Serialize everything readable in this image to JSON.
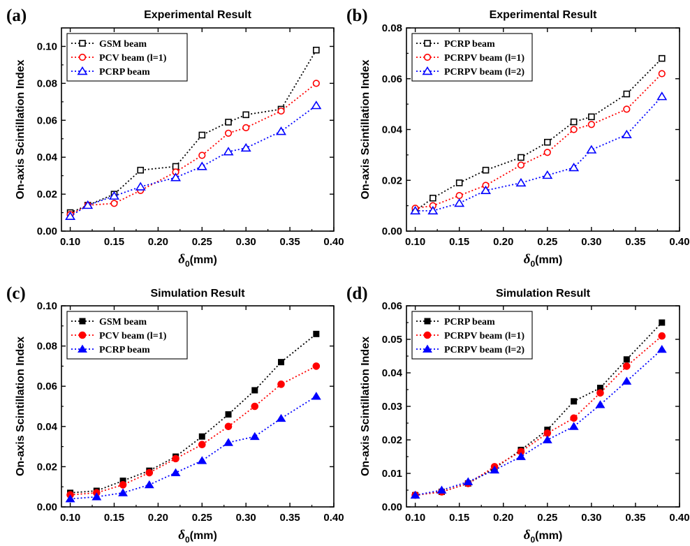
{
  "chart_data": [
    {
      "panel": "(a)",
      "type": "scatter",
      "title": "Experimental Result",
      "ylabel": "On-axis Scintillation Index",
      "xlabel": {
        "symbol": "δ",
        "subscript": "0",
        "unit": "(mm)"
      },
      "xlim": [
        0.09,
        0.4
      ],
      "ylim": [
        0,
        0.11
      ],
      "xticks": [
        0.1,
        0.15,
        0.2,
        0.25,
        0.3,
        0.35,
        0.4
      ],
      "yticks": [
        0.0,
        0.02,
        0.04,
        0.06,
        0.08,
        0.1
      ],
      "xtick_labels": [
        "0.10",
        "0.15",
        "0.20",
        "0.25",
        "0.30",
        "0.35",
        "0.40"
      ],
      "ytick_labels": [
        "0.00",
        "0.02",
        "0.04",
        "0.06",
        "0.08",
        "0.10"
      ],
      "legend_position": "top-left",
      "filled": false,
      "series": [
        {
          "name": "GSM   beam",
          "color": "#000000",
          "marker": "square",
          "x": [
            0.1,
            0.12,
            0.15,
            0.18,
            0.22,
            0.25,
            0.28,
            0.3,
            0.34,
            0.38
          ],
          "y": [
            0.01,
            0.014,
            0.02,
            0.033,
            0.035,
            0.052,
            0.059,
            0.063,
            0.066,
            0.098
          ]
        },
        {
          "name": "PCV    beam (l=1)",
          "color": "#ff0000",
          "marker": "circle",
          "x": [
            0.1,
            0.12,
            0.15,
            0.18,
            0.22,
            0.25,
            0.28,
            0.3,
            0.34,
            0.38
          ],
          "y": [
            0.009,
            0.014,
            0.015,
            0.022,
            0.032,
            0.041,
            0.053,
            0.056,
            0.065,
            0.08
          ]
        },
        {
          "name": "PCRP  beam",
          "color": "#0000ff",
          "marker": "triangle",
          "x": [
            0.1,
            0.12,
            0.15,
            0.18,
            0.22,
            0.25,
            0.28,
            0.3,
            0.34,
            0.38
          ],
          "y": [
            0.008,
            0.014,
            0.019,
            0.024,
            0.029,
            0.035,
            0.043,
            0.045,
            0.054,
            0.068
          ]
        }
      ]
    },
    {
      "panel": "(b)",
      "type": "scatter",
      "title": "Experimental Result",
      "ylabel": "On-axis Scintillation Index",
      "xlabel": {
        "symbol": "δ",
        "subscript": "0",
        "unit": "(mm)"
      },
      "xlim": [
        0.09,
        0.4
      ],
      "ylim": [
        0,
        0.08
      ],
      "xticks": [
        0.1,
        0.15,
        0.2,
        0.25,
        0.3,
        0.35,
        0.4
      ],
      "yticks": [
        0.0,
        0.02,
        0.04,
        0.06,
        0.08
      ],
      "xtick_labels": [
        "0.10",
        "0.15",
        "0.20",
        "0.25",
        "0.30",
        "0.35",
        "0.40"
      ],
      "ytick_labels": [
        "0.00",
        "0.02",
        "0.04",
        "0.06",
        "0.08"
      ],
      "legend_position": "top-left",
      "filled": false,
      "series": [
        {
          "name": "PCRP beam",
          "color": "#000000",
          "marker": "square",
          "x": [
            0.1,
            0.12,
            0.15,
            0.18,
            0.22,
            0.25,
            0.28,
            0.3,
            0.34,
            0.38
          ],
          "y": [
            0.008,
            0.013,
            0.019,
            0.024,
            0.029,
            0.035,
            0.043,
            0.045,
            0.054,
            0.068
          ]
        },
        {
          "name": "PCRPV beam (l=1)",
          "color": "#ff0000",
          "marker": "circle",
          "x": [
            0.1,
            0.12,
            0.15,
            0.18,
            0.22,
            0.25,
            0.28,
            0.3,
            0.34,
            0.38
          ],
          "y": [
            0.009,
            0.01,
            0.014,
            0.018,
            0.026,
            0.031,
            0.04,
            0.042,
            0.048,
            0.062
          ]
        },
        {
          "name": "PCRPV beam (l=2)",
          "color": "#0000ff",
          "marker": "triangle",
          "x": [
            0.1,
            0.12,
            0.15,
            0.18,
            0.22,
            0.25,
            0.28,
            0.3,
            0.34,
            0.38
          ],
          "y": [
            0.008,
            0.008,
            0.011,
            0.016,
            0.019,
            0.022,
            0.025,
            0.032,
            0.038,
            0.053
          ]
        }
      ]
    },
    {
      "panel": "(c)",
      "type": "scatter",
      "title": "Simulation Result",
      "ylabel": "On-axis Scintillation Index",
      "xlabel": {
        "symbol": "δ",
        "subscript": "0",
        "unit": "(mm)"
      },
      "xlim": [
        0.09,
        0.4
      ],
      "ylim": [
        0,
        0.1
      ],
      "xticks": [
        0.1,
        0.15,
        0.2,
        0.25,
        0.3,
        0.35,
        0.4
      ],
      "yticks": [
        0.0,
        0.02,
        0.04,
        0.06,
        0.08,
        0.1
      ],
      "xtick_labels": [
        "0.10",
        "0.15",
        "0.20",
        "0.25",
        "0.30",
        "0.35",
        "0.40"
      ],
      "ytick_labels": [
        "0.00",
        "0.02",
        "0.04",
        "0.06",
        "0.08",
        "0.10"
      ],
      "legend_position": "top-left",
      "filled": true,
      "series": [
        {
          "name": "GSM   beam",
          "color": "#000000",
          "marker": "square",
          "x": [
            0.1,
            0.13,
            0.16,
            0.19,
            0.22,
            0.25,
            0.28,
            0.31,
            0.34,
            0.38
          ],
          "y": [
            0.007,
            0.008,
            0.013,
            0.018,
            0.025,
            0.035,
            0.046,
            0.058,
            0.072,
            0.086
          ]
        },
        {
          "name": "PCV    beam (l=1)",
          "color": "#ff0000",
          "marker": "circle",
          "x": [
            0.1,
            0.13,
            0.16,
            0.19,
            0.22,
            0.25,
            0.28,
            0.31,
            0.34,
            0.38
          ],
          "y": [
            0.006,
            0.007,
            0.011,
            0.017,
            0.024,
            0.031,
            0.04,
            0.05,
            0.061,
            0.07
          ]
        },
        {
          "name": "PCRP  beam",
          "color": "#0000ff",
          "marker": "triangle",
          "x": [
            0.1,
            0.13,
            0.16,
            0.19,
            0.22,
            0.25,
            0.28,
            0.31,
            0.34,
            0.38
          ],
          "y": [
            0.004,
            0.005,
            0.007,
            0.011,
            0.017,
            0.023,
            0.032,
            0.035,
            0.044,
            0.055
          ]
        }
      ]
    },
    {
      "panel": "(d)",
      "type": "scatter",
      "title": "Simulation Result",
      "ylabel": "On-axis Scintillation Index",
      "xlabel": {
        "symbol": "δ",
        "subscript": "0",
        "unit": "(mm)"
      },
      "xlim": [
        0.09,
        0.4
      ],
      "ylim": [
        0,
        0.06
      ],
      "xticks": [
        0.1,
        0.15,
        0.2,
        0.25,
        0.3,
        0.35,
        0.4
      ],
      "yticks": [
        0.0,
        0.01,
        0.02,
        0.03,
        0.04,
        0.05,
        0.06
      ],
      "xtick_labels": [
        "0.10",
        "0.15",
        "0.20",
        "0.25",
        "0.30",
        "0.35",
        "0.40"
      ],
      "ytick_labels": [
        "0.00",
        "0.01",
        "0.02",
        "0.03",
        "0.04",
        "0.05",
        "0.06"
      ],
      "legend_position": "top-left",
      "filled": true,
      "series": [
        {
          "name": "PCRP beam",
          "color": "#000000",
          "marker": "square",
          "x": [
            0.1,
            0.13,
            0.16,
            0.19,
            0.22,
            0.25,
            0.28,
            0.31,
            0.34,
            0.38
          ],
          "y": [
            0.0035,
            0.0045,
            0.007,
            0.0115,
            0.017,
            0.023,
            0.0315,
            0.0355,
            0.044,
            0.055
          ]
        },
        {
          "name": "PCRPV beam (l=1)",
          "color": "#ff0000",
          "marker": "circle",
          "x": [
            0.1,
            0.13,
            0.16,
            0.19,
            0.22,
            0.25,
            0.28,
            0.31,
            0.34,
            0.38
          ],
          "y": [
            0.0035,
            0.0045,
            0.007,
            0.012,
            0.0165,
            0.022,
            0.0265,
            0.034,
            0.042,
            0.051
          ]
        },
        {
          "name": "PCRPV beam (l=2)",
          "color": "#0000ff",
          "marker": "triangle",
          "x": [
            0.1,
            0.13,
            0.16,
            0.19,
            0.22,
            0.25,
            0.28,
            0.31,
            0.34,
            0.38
          ],
          "y": [
            0.0035,
            0.005,
            0.0075,
            0.011,
            0.015,
            0.02,
            0.024,
            0.0305,
            0.0375,
            0.047
          ]
        }
      ]
    }
  ]
}
